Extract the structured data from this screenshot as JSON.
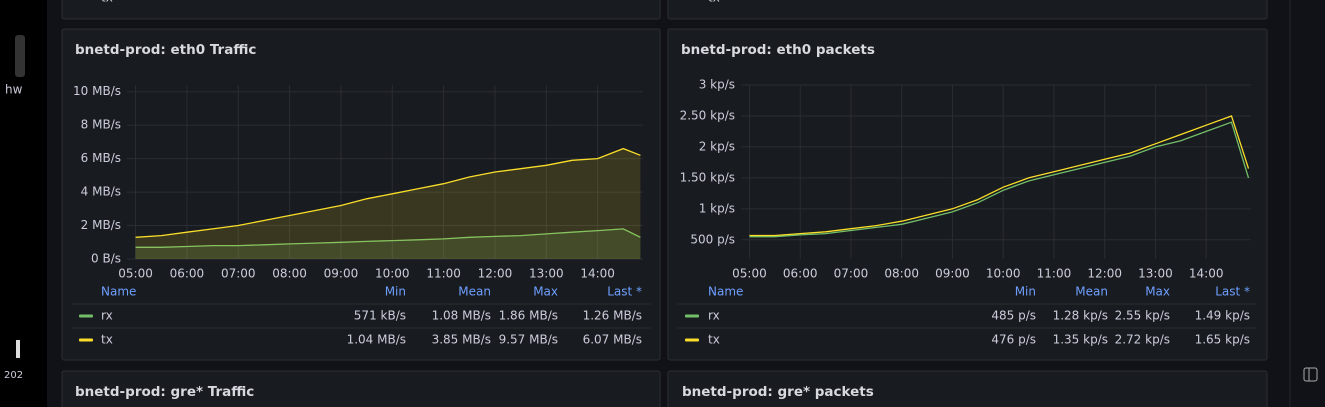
{
  "chart_data": [
    {
      "type": "line",
      "title": "bnetd-prod: eth0 Traffic",
      "x": [
        "05:00",
        "05:30",
        "06:00",
        "06:30",
        "07:00",
        "07:30",
        "08:00",
        "08:30",
        "09:00",
        "09:30",
        "10:00",
        "10:30",
        "11:00",
        "11:30",
        "12:00",
        "12:30",
        "13:00",
        "13:30",
        "14:00",
        "14:30",
        "14:50"
      ],
      "xlim": [
        "04:50",
        "14:53"
      ],
      "xticks": [
        "05:00",
        "06:00",
        "07:00",
        "08:00",
        "09:00",
        "10:00",
        "11:00",
        "12:00",
        "13:00",
        "14:00"
      ],
      "ylim": [
        0,
        10.4
      ],
      "yticks": [
        {
          "value": 0,
          "label": "0 B/s"
        },
        {
          "value": 2,
          "label": "2 MB/s"
        },
        {
          "value": 4,
          "label": "4 MB/s"
        },
        {
          "value": 6,
          "label": "6 MB/s"
        },
        {
          "value": 8,
          "label": "8 MB/s"
        },
        {
          "value": 10,
          "label": "10 MB/s"
        }
      ],
      "grid": true,
      "fill": true,
      "legend_columns": [
        "Name",
        "Min",
        "Mean",
        "Max",
        "Last *"
      ],
      "series": [
        {
          "name": "rx",
          "color": "#73bf69",
          "values": [
            0.7,
            0.7,
            0.75,
            0.8,
            0.8,
            0.85,
            0.9,
            0.95,
            1.0,
            1.05,
            1.1,
            1.15,
            1.2,
            1.3,
            1.35,
            1.4,
            1.5,
            1.6,
            1.7,
            1.8,
            1.3
          ],
          "stats": [
            "571 kB/s",
            "1.08 MB/s",
            "1.86 MB/s",
            "1.26 MB/s"
          ]
        },
        {
          "name": "tx",
          "color": "#fade2a",
          "values": [
            1.3,
            1.4,
            1.6,
            1.8,
            2.0,
            2.3,
            2.6,
            2.9,
            3.2,
            3.6,
            3.9,
            4.2,
            4.5,
            4.9,
            5.2,
            5.4,
            5.6,
            5.9,
            6.0,
            6.6,
            6.2
          ],
          "stats": [
            "1.04 MB/s",
            "3.85 MB/s",
            "9.57 MB/s",
            "6.07 MB/s"
          ]
        }
      ]
    },
    {
      "type": "line",
      "title": "bnetd-prod: eth0 packets",
      "x": [
        "05:00",
        "05:30",
        "06:00",
        "06:30",
        "07:00",
        "07:30",
        "08:00",
        "08:30",
        "09:00",
        "09:30",
        "10:00",
        "10:30",
        "11:00",
        "11:30",
        "12:00",
        "12:30",
        "13:00",
        "13:30",
        "14:00",
        "14:30",
        "14:50"
      ],
      "xlim": [
        "04:50",
        "14:53"
      ],
      "xticks": [
        "05:00",
        "06:00",
        "07:00",
        "08:00",
        "09:00",
        "10:00",
        "11:00",
        "12:00",
        "13:00",
        "14:00"
      ],
      "ylim": [
        0.19,
        3.0
      ],
      "yticks": [
        {
          "value": 0.5,
          "label": "500 p/s"
        },
        {
          "value": 1,
          "label": "1 kp/s"
        },
        {
          "value": 1.5,
          "label": "1.50 kp/s"
        },
        {
          "value": 2,
          "label": "2 kp/s"
        },
        {
          "value": 2.5,
          "label": "2.50 kp/s"
        },
        {
          "value": 3,
          "label": "3 kp/s"
        }
      ],
      "grid": true,
      "fill": false,
      "legend_columns": [
        "Name",
        "Min",
        "Mean",
        "Max",
        "Last *"
      ],
      "series": [
        {
          "name": "rx",
          "color": "#73bf69",
          "values": [
            0.55,
            0.55,
            0.58,
            0.6,
            0.65,
            0.7,
            0.75,
            0.85,
            0.95,
            1.1,
            1.3,
            1.45,
            1.55,
            1.65,
            1.75,
            1.85,
            2.0,
            2.1,
            2.25,
            2.4,
            1.5
          ],
          "stats": [
            "485 p/s",
            "1.28 kp/s",
            "2.55 kp/s",
            "1.49 kp/s"
          ]
        },
        {
          "name": "tx",
          "color": "#fade2a",
          "values": [
            0.57,
            0.57,
            0.6,
            0.63,
            0.68,
            0.73,
            0.8,
            0.9,
            1.0,
            1.15,
            1.35,
            1.5,
            1.6,
            1.7,
            1.8,
            1.9,
            2.05,
            2.2,
            2.35,
            2.5,
            1.65
          ],
          "stats": [
            "476 p/s",
            "1.35 kp/s",
            "2.72 kp/s",
            "1.65 kp/s"
          ]
        }
      ]
    }
  ],
  "panels_below": [
    "bnetd-prod: gre* Traffic",
    "bnetd-prod: gre* packets"
  ],
  "top_rows": [
    "tx",
    "tx"
  ],
  "sidebar_fragments": [
    "hw",
    "202"
  ]
}
